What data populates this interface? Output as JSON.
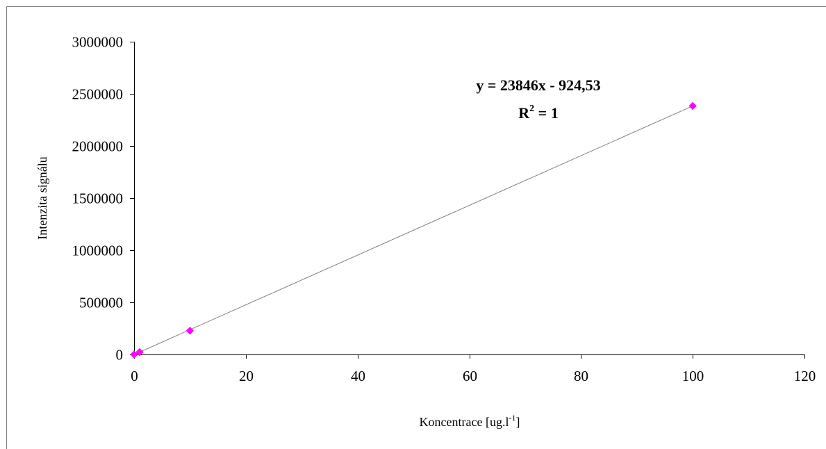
{
  "chart_data": {
    "type": "scatter",
    "title": "",
    "xlabel": "Koncentrace [ug.l",
    "xlabel_sup": "-1",
    "xlabel_suffix": "]",
    "ylabel": "Intenzita signálu",
    "xlim": [
      0,
      120
    ],
    "ylim": [
      0,
      3000000
    ],
    "x_ticks": [
      0,
      20,
      40,
      60,
      80,
      100,
      120
    ],
    "y_ticks": [
      0,
      500000,
      1000000,
      1500000,
      2000000,
      2500000,
      3000000
    ],
    "grid": false,
    "legend": "none",
    "marker": "diamond",
    "colors": {
      "marker": "#ff00ff",
      "trendline": "#808080",
      "axis": "#000000",
      "frame": "#808080"
    },
    "series": [
      {
        "x": [
          0,
          1,
          10,
          100
        ],
        "y": [
          0,
          23000,
          228000,
          2384000
        ]
      }
    ],
    "trendline": {
      "type": "linear",
      "slope": 23846,
      "intercept": -924.53,
      "x_range": [
        0,
        100
      ],
      "equation_label": "y = 23846x - 924,53",
      "r2_label_base": "R",
      "r2_label_sup": "2",
      "r2_label_value": " = 1"
    }
  }
}
